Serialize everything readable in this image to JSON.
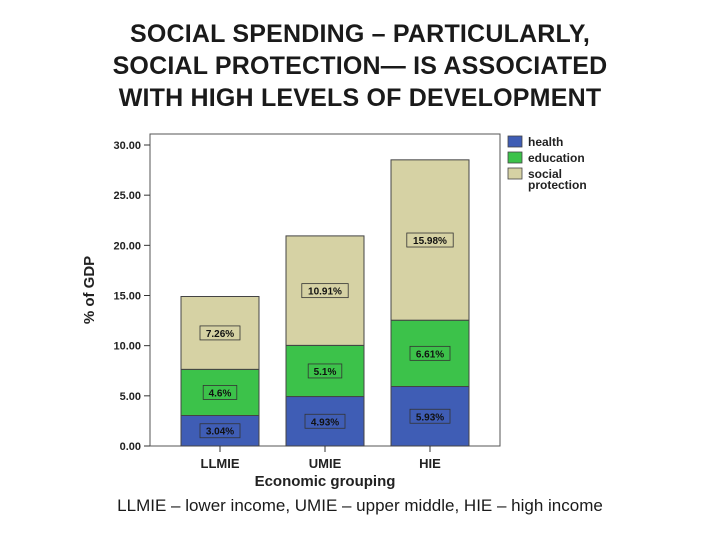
{
  "title_lines": [
    "SOCIAL SPENDING – PARTICULARLY,",
    "SOCIAL PROTECTION— IS ASSOCIATED",
    "WITH HIGH LEVELS OF DEVELOPMENT"
  ],
  "footer_note": "LLMIE – lower income, UMIE – upper middle, HIE – high income",
  "chart_data": {
    "type": "bar",
    "stacked": true,
    "categories": [
      "LLMIE",
      "UMIE",
      "HIE"
    ],
    "series": [
      {
        "name": "health",
        "values": [
          3.04,
          4.93,
          5.93
        ],
        "labels": [
          "3.04%",
          "4.93%",
          "5.93%"
        ],
        "color": "#3f5db5"
      },
      {
        "name": "education",
        "values": [
          4.6,
          5.1,
          6.61
        ],
        "labels": [
          "4.6%",
          "5.1%",
          "6.61%"
        ],
        "color": "#3cc24a"
      },
      {
        "name": "social protection",
        "legend_lines": [
          "social",
          "protection"
        ],
        "values": [
          7.26,
          10.91,
          15.98
        ],
        "labels": [
          "7.26%",
          "10.91%",
          "15.98%"
        ],
        "color": "#d6d2a4"
      }
    ],
    "xlabel": "Economic grouping",
    "ylabel": "% of GDP",
    "ylim": [
      0,
      30
    ],
    "yticks": [
      "0.00",
      "5.00",
      "10.00",
      "15.00",
      "20.00",
      "25.00",
      "30.00"
    ],
    "grid": false,
    "legend_position": "top-right"
  }
}
